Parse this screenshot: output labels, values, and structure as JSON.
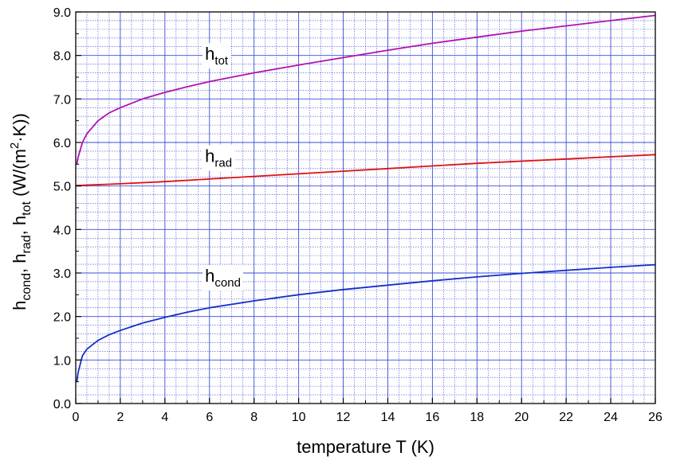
{
  "chart_data": {
    "type": "line",
    "title": "",
    "xlabel": "temperature T (K)",
    "ylabel": {
      "parts": [
        {
          "t": "h"
        },
        {
          "t": "cond",
          "sub": true
        },
        {
          "t": ", h"
        },
        {
          "t": "rad",
          "sub": true
        },
        {
          "t": ", h"
        },
        {
          "t": "tot",
          "sub": true
        },
        {
          "t": " (W/(m"
        },
        {
          "t": "2",
          "sup": true
        },
        {
          "t": "·K))"
        }
      ]
    },
    "xlim": [
      0,
      26
    ],
    "ylim": [
      0,
      9
    ],
    "x_ticks": [
      0,
      2,
      4,
      6,
      8,
      10,
      12,
      14,
      16,
      18,
      20,
      22,
      24,
      26
    ],
    "x_tick_labels": [
      "0",
      "2",
      "4",
      "6",
      "8",
      "10",
      "12",
      "14",
      "16",
      "18",
      "20",
      "22",
      "24",
      "26"
    ],
    "y_ticks": [
      0,
      1,
      2,
      3,
      4,
      5,
      6,
      7,
      8,
      9
    ],
    "y_tick_labels": [
      "0.0",
      "1.0",
      "2.0",
      "3.0",
      "4.0",
      "5.0",
      "6.0",
      "7.0",
      "8.0",
      "9.0"
    ],
    "grid": true,
    "minor_x_step": 0.5,
    "minor_y_step": 0.2,
    "colors": {
      "grid": "#3b4cd8",
      "axes": "#000000",
      "h_tot": "#b012b0",
      "h_rad": "#e01010",
      "h_cond": "#1530c8"
    },
    "series": [
      {
        "key": "h_tot",
        "label_main": "h",
        "label_sub": "tot",
        "label_at": [
          5.8,
          7.9
        ],
        "color": "#b012b0",
        "x": [
          0.05,
          0.1,
          0.3,
          0.5,
          1,
          1.5,
          2,
          3,
          4,
          5,
          6,
          8,
          10,
          12,
          14,
          16,
          18,
          20,
          22,
          24,
          26
        ],
        "y": [
          5.5,
          5.65,
          6.0,
          6.2,
          6.5,
          6.68,
          6.8,
          7.0,
          7.15,
          7.28,
          7.4,
          7.6,
          7.78,
          7.95,
          8.12,
          8.28,
          8.42,
          8.56,
          8.68,
          8.8,
          8.92
        ]
      },
      {
        "key": "h_rad",
        "label_main": "h",
        "label_sub": "rad",
        "label_at": [
          5.8,
          5.55
        ],
        "color": "#e01010",
        "x": [
          0,
          2,
          4,
          6,
          8,
          10,
          12,
          14,
          16,
          18,
          20,
          22,
          24,
          26
        ],
        "y": [
          5.01,
          5.05,
          5.1,
          5.16,
          5.22,
          5.28,
          5.34,
          5.4,
          5.46,
          5.52,
          5.57,
          5.62,
          5.67,
          5.72
        ]
      },
      {
        "key": "h_cond",
        "label_main": "h",
        "label_sub": "cond",
        "label_at": [
          5.8,
          2.8
        ],
        "color": "#1530c8",
        "x": [
          0.05,
          0.1,
          0.3,
          0.5,
          1,
          1.5,
          2,
          3,
          4,
          5,
          6,
          8,
          10,
          12,
          14,
          16,
          18,
          20,
          22,
          24,
          26
        ],
        "y": [
          0.5,
          0.7,
          1.1,
          1.25,
          1.45,
          1.58,
          1.68,
          1.85,
          1.98,
          2.1,
          2.2,
          2.36,
          2.5,
          2.62,
          2.72,
          2.82,
          2.91,
          2.99,
          3.06,
          3.13,
          3.19
        ]
      }
    ]
  }
}
